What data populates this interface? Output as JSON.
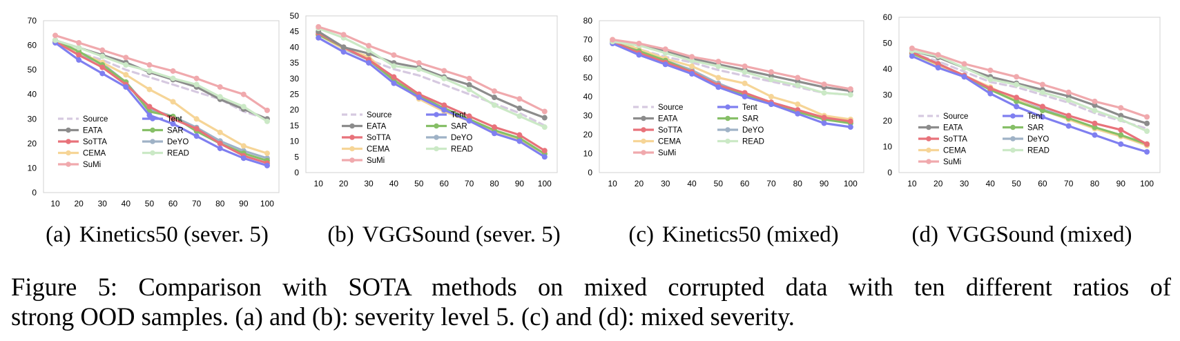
{
  "chart_data": [
    {
      "type": "line",
      "label": "(a)",
      "title": "Kinetics50 (sever. 5)",
      "x": [
        10,
        20,
        30,
        40,
        50,
        60,
        70,
        80,
        90,
        100
      ],
      "ylim": [
        0,
        70
      ],
      "yticks": [
        0,
        10,
        20,
        30,
        40,
        50,
        60,
        70
      ],
      "series": [
        {
          "name": "Source",
          "values": [
            61,
            57,
            54,
            50,
            47,
            44,
            41,
            38,
            33,
            30
          ]
        },
        {
          "name": "Tent",
          "values": [
            61,
            54,
            48.5,
            43,
            31.5,
            28,
            23,
            18,
            14,
            11
          ]
        },
        {
          "name": "EATA",
          "values": [
            62,
            59,
            56,
            53,
            49,
            46,
            43,
            38,
            34,
            30
          ]
        },
        {
          "name": "SAR",
          "values": [
            62,
            57.5,
            52,
            45,
            33,
            31,
            25,
            20,
            16,
            13
          ]
        },
        {
          "name": "SoTTA",
          "values": [
            61.5,
            56,
            51,
            44,
            35,
            30,
            26,
            20,
            15,
            12
          ]
        },
        {
          "name": "DeYO",
          "values": [
            61.5,
            56.5,
            52.5,
            45,
            34,
            31,
            26.5,
            21,
            17,
            14
          ]
        },
        {
          "name": "CEMA",
          "values": [
            62,
            57,
            53,
            48,
            42,
            37,
            30,
            24.5,
            19,
            16
          ]
        },
        {
          "name": "READ",
          "values": [
            62,
            59,
            55.5,
            52,
            49.5,
            46.5,
            44,
            39,
            35,
            29
          ]
        },
        {
          "name": "SuMi",
          "values": [
            64,
            61,
            58,
            55,
            52,
            49.5,
            46.5,
            43,
            40,
            33.5
          ]
        }
      ]
    },
    {
      "type": "line",
      "label": "(b)",
      "title": "VGGSound (sever. 5)",
      "x": [
        10,
        20,
        30,
        40,
        50,
        60,
        70,
        80,
        90,
        100
      ],
      "ylim": [
        0,
        50
      ],
      "yticks": [
        0,
        5,
        10,
        15,
        20,
        25,
        30,
        35,
        40,
        45,
        50
      ],
      "series": [
        {
          "name": "Source",
          "values": [
            44,
            40,
            36,
            33,
            31,
            28,
            25,
            22,
            19,
            15
          ]
        },
        {
          "name": "Tent",
          "values": [
            43,
            38.5,
            35,
            28.5,
            24,
            20,
            16.5,
            12.5,
            10,
            5
          ]
        },
        {
          "name": "EATA",
          "values": [
            45,
            40,
            38,
            35,
            33.5,
            30.5,
            28,
            24,
            20.5,
            17.5
          ]
        },
        {
          "name": "SAR",
          "values": [
            44,
            40,
            36,
            29.5,
            24.5,
            20.5,
            17,
            13.5,
            11,
            6
          ]
        },
        {
          "name": "SoTTA",
          "values": [
            44.5,
            40,
            36,
            30.5,
            25,
            21.5,
            18,
            14.5,
            12,
            7
          ]
        },
        {
          "name": "DeYO",
          "values": [
            44,
            39.5,
            36,
            29.5,
            24,
            20.5,
            17,
            13,
            11,
            6
          ]
        },
        {
          "name": "CEMA",
          "values": [
            44,
            39.5,
            37,
            29.5,
            23.5,
            19.5,
            16.5,
            13,
            10.5,
            6
          ]
        },
        {
          "name": "READ",
          "values": [
            46,
            43,
            39,
            34,
            33,
            30,
            26.5,
            21.5,
            18,
            14.5
          ]
        },
        {
          "name": "SuMi",
          "values": [
            46.5,
            44,
            40.5,
            37.5,
            35,
            32.5,
            30,
            26,
            23.5,
            19.5
          ]
        }
      ]
    },
    {
      "type": "line",
      "label": "(c)",
      "title": "Kinetics50 (mixed)",
      "x": [
        10,
        20,
        30,
        40,
        50,
        60,
        70,
        80,
        90,
        100
      ],
      "ylim": [
        0,
        80
      ],
      "yticks": [
        0,
        10,
        20,
        30,
        40,
        50,
        60,
        70,
        80
      ],
      "series": [
        {
          "name": "Source",
          "values": [
            69,
            65,
            61,
            58,
            54,
            51,
            48,
            45,
            42,
            41
          ]
        },
        {
          "name": "Tent",
          "values": [
            68,
            62,
            57,
            52,
            45,
            40,
            36,
            31,
            26,
            24
          ]
        },
        {
          "name": "EATA",
          "values": [
            69,
            67,
            64,
            60,
            57,
            54,
            51,
            48,
            45,
            43
          ]
        },
        {
          "name": "SAR",
          "values": [
            68.5,
            64,
            59,
            53,
            46,
            41,
            36,
            32,
            28,
            26
          ]
        },
        {
          "name": "SoTTA",
          "values": [
            69,
            63,
            58,
            53,
            46,
            42,
            37,
            33,
            29,
            27
          ]
        },
        {
          "name": "DeYO",
          "values": [
            69,
            64,
            59,
            54,
            47,
            41.5,
            37,
            33,
            28.5,
            26
          ]
        },
        {
          "name": "CEMA",
          "values": [
            70,
            65,
            60,
            56,
            50,
            47,
            40,
            36,
            30,
            28
          ]
        },
        {
          "name": "READ",
          "values": [
            69,
            67,
            63,
            59,
            56,
            53,
            49,
            46,
            42,
            41
          ]
        },
        {
          "name": "SuMi",
          "values": [
            70,
            68,
            65,
            61,
            58.5,
            56,
            53,
            50,
            46.5,
            44
          ]
        }
      ]
    },
    {
      "type": "line",
      "label": "(d)",
      "title": "VGGSound (mixed)",
      "x": [
        10,
        20,
        30,
        40,
        50,
        60,
        70,
        80,
        90,
        100
      ],
      "ylim": [
        0,
        60
      ],
      "yticks": [
        0,
        10,
        20,
        30,
        40,
        50,
        60
      ],
      "series": [
        {
          "name": "Source",
          "values": [
            46,
            43,
            39,
            35,
            33,
            30,
            27,
            23,
            20,
            17
          ]
        },
        {
          "name": "Tent",
          "values": [
            45,
            40.5,
            37,
            30.5,
            25.5,
            21.5,
            18,
            14.5,
            11,
            8
          ]
        },
        {
          "name": "EATA",
          "values": [
            47,
            44.5,
            40.5,
            37,
            34.5,
            32,
            29.5,
            26,
            22,
            19
          ]
        },
        {
          "name": "SAR",
          "values": [
            46,
            42,
            37.5,
            32,
            27.5,
            24,
            21,
            17.5,
            14.5,
            11
          ]
        },
        {
          "name": "SoTTA",
          "values": [
            46.5,
            42,
            37.5,
            32.5,
            29,
            25.5,
            22,
            19,
            16.5,
            11
          ]
        },
        {
          "name": "DeYO",
          "values": [
            46,
            41.5,
            37,
            32,
            28,
            24.5,
            21,
            17,
            14,
            10.5
          ]
        },
        {
          "name": "CEMA",
          "values": [
            46,
            41.5,
            37.5,
            33,
            28,
            24,
            20.5,
            17,
            14,
            10.5
          ]
        },
        {
          "name": "READ",
          "values": [
            47,
            45,
            40.5,
            36,
            34,
            31,
            28,
            24,
            20.5,
            16
          ]
        },
        {
          "name": "SuMi",
          "values": [
            48,
            45.5,
            42,
            39.5,
            37,
            34,
            31,
            27.5,
            25,
            21.5
          ]
        }
      ]
    }
  ],
  "styles": {
    "Source": {
      "color": "#d6c9e0",
      "dash": true
    },
    "Tent": {
      "color": "#7f7ff0"
    },
    "EATA": {
      "color": "#8c8c8c"
    },
    "SAR": {
      "color": "#86bf67"
    },
    "SoTTA": {
      "color": "#e8727a"
    },
    "DeYO": {
      "color": "#9fb2c6"
    },
    "CEMA": {
      "color": "#f6d597"
    },
    "READ": {
      "color": "#cbe9c6"
    },
    "SuMi": {
      "color": "#f0a9ad"
    }
  },
  "draw_order": [
    "Source",
    "DeYO",
    "CEMA",
    "SAR",
    "SoTTA",
    "Tent",
    "EATA",
    "READ",
    "SuMi"
  ],
  "legend_order": [
    "Source",
    "Tent",
    "EATA",
    "SAR",
    "SoTTA",
    "DeYO",
    "CEMA",
    "READ",
    "SuMi"
  ],
  "subcaptions": [
    {
      "label": "(a)",
      "text": "Kinetics50 (sever. 5)"
    },
    {
      "label": "(b)",
      "text": "VGGSound (sever. 5)"
    },
    {
      "label": "(c)",
      "text": "Kinetics50 (mixed)"
    },
    {
      "label": "(d)",
      "text": "VGGSound (mixed)"
    }
  ],
  "caption": {
    "line1": "Figure 5:  Comparison with SOTA methods on mixed corrupted data with ten different ratios of",
    "line2": "strong OOD samples. (a) and (b): severity level 5. (c) and (d): mixed severity."
  }
}
